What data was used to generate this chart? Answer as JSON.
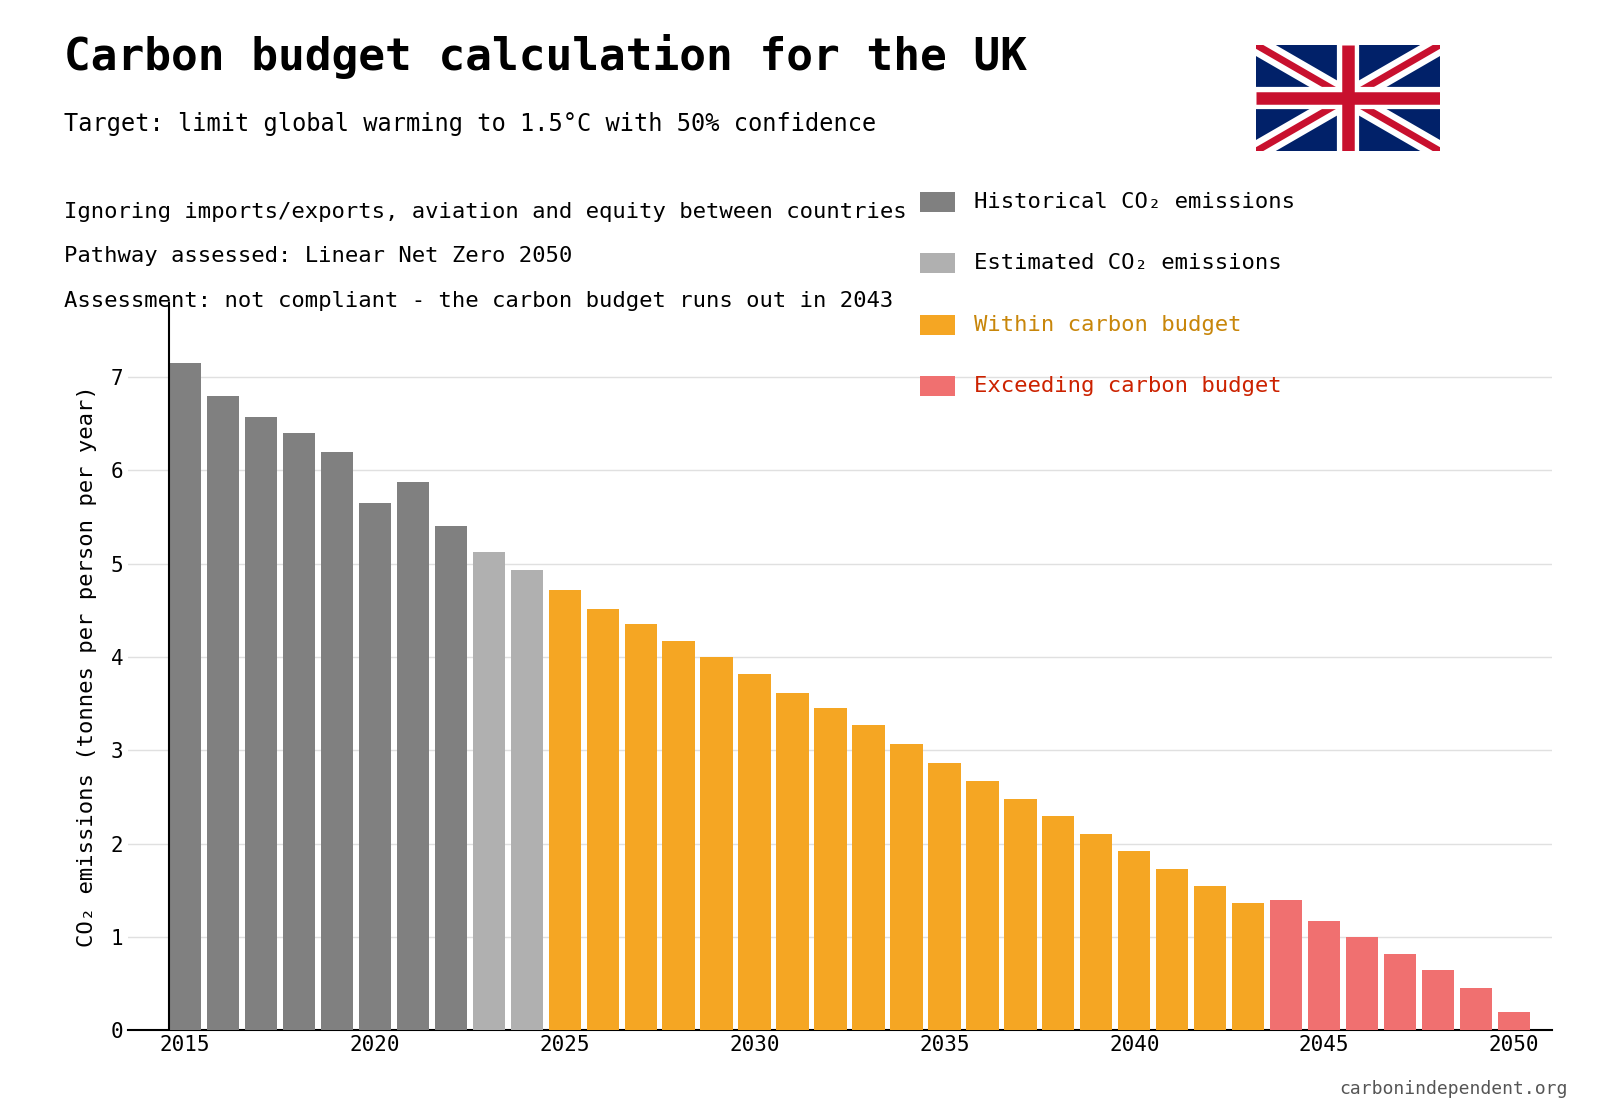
{
  "title": "Carbon budget calculation for the UK",
  "subtitle": "Target: limit global warming to 1.5°C with 50% confidence",
  "info_line1": "Ignoring imports/exports, aviation and equity between countries",
  "info_line2": "Pathway assessed: Linear Net Zero 2050",
  "info_line3": "Assessment: not compliant - the carbon budget runs out in 2043",
  "ylabel": "CO₂ emissions (tonnes per person per year)",
  "watermark": "carbonindependent.org",
  "years": [
    2015,
    2016,
    2017,
    2018,
    2019,
    2020,
    2021,
    2022,
    2023,
    2024,
    2025,
    2026,
    2027,
    2028,
    2029,
    2030,
    2031,
    2032,
    2033,
    2034,
    2035,
    2036,
    2037,
    2038,
    2039,
    2040,
    2041,
    2042,
    2043,
    2044,
    2045,
    2046,
    2047,
    2048,
    2049,
    2050
  ],
  "values": [
    7.15,
    6.8,
    6.57,
    6.4,
    6.2,
    5.65,
    5.88,
    5.4,
    5.13,
    4.93,
    4.72,
    4.52,
    4.35,
    4.17,
    4.0,
    3.82,
    3.62,
    3.45,
    3.27,
    3.07,
    2.87,
    2.67,
    2.48,
    2.3,
    2.1,
    1.92,
    1.73,
    1.55,
    1.37,
    1.4,
    1.17,
    1.0,
    0.82,
    0.65,
    0.45,
    0.2
  ],
  "colors": {
    "historical": "#808080",
    "estimated": "#b0b0b0",
    "within_budget": "#f5a623",
    "exceeding_budget": "#f07070",
    "background": "#ffffff",
    "grid": "#e0e0e0"
  },
  "legend_labels": {
    "historical": "Historical CO₂ emissions",
    "estimated": "Estimated CO₂ emissions",
    "within_budget": "Within carbon budget",
    "exceeding_budget": "Exceeding carbon budget"
  },
  "legend_text_colors": {
    "historical": "#000000",
    "estimated": "#000000",
    "within_budget": "#c8860a",
    "exceeding_budget": "#cc2200"
  },
  "historical_end_year": 2022,
  "estimated_end_year": 2024,
  "within_budget_end_year": 2043,
  "ylim": [
    0,
    7.8
  ],
  "xlim": [
    2013.5,
    2051
  ],
  "title_fontsize": 32,
  "subtitle_fontsize": 17,
  "info_fontsize": 16,
  "axis_fontsize": 16,
  "tick_fontsize": 15,
  "legend_fontsize": 16
}
